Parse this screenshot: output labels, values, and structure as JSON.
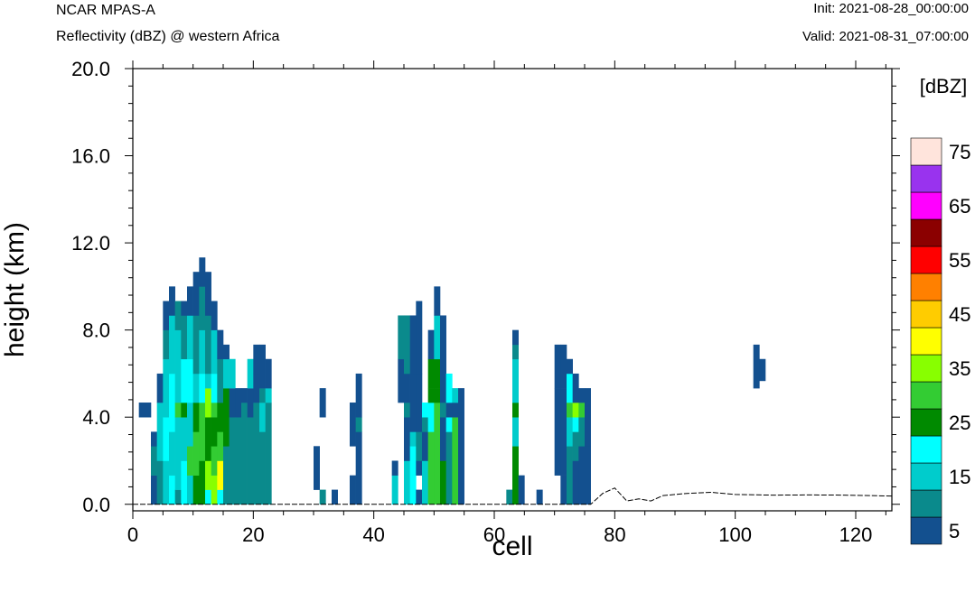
{
  "header": {
    "left_top": "NCAR MPAS-A",
    "left_sub": "Reflectivity (dBZ) @ western Africa",
    "right_top": "Init: 2021-08-28_00:00:00",
    "right_sub": "Valid: 2021-08-31_07:00:00"
  },
  "chart_data": {
    "type": "heatmap",
    "xlabel": "cell",
    "ylabel": "height (km)",
    "xlim": [
      0,
      126
    ],
    "ylim": [
      -0.3,
      20.0
    ],
    "x_ticks": [
      "0",
      "20",
      "40",
      "60",
      "80",
      "100",
      "120"
    ],
    "y_ticks": [
      "0.0",
      "4.0",
      "8.0",
      "12.0",
      "16.0",
      "20.0"
    ],
    "colorbar": {
      "label": "[dBZ]",
      "tick_labels": [
        "5",
        "15",
        "25",
        "35",
        "45",
        "55",
        "65",
        "75"
      ],
      "levels": [
        5,
        10,
        15,
        20,
        25,
        30,
        35,
        40,
        45,
        50,
        55,
        60,
        65,
        70,
        75
      ],
      "colors": [
        "#13508f",
        "#0a8a8c",
        "#00cccc",
        "#00ffff",
        "#008a00",
        "#33cc33",
        "#88ff00",
        "#ffff00",
        "#ffcc00",
        "#ff8000",
        "#ff0000",
        "#8b0000",
        "#ff00ff",
        "#9933ee",
        "#ffe4dc"
      ]
    },
    "cell_height_km": 0.67,
    "columns": [
      {
        "x": 1,
        "bins": [
          [
            4.0,
            4.67,
            5
          ]
        ]
      },
      {
        "x": 2,
        "bins": [
          [
            4.0,
            4.67,
            5
          ]
        ]
      },
      {
        "x": 3,
        "bins": [
          [
            0,
            1.33,
            5
          ],
          [
            1.33,
            2.67,
            10
          ],
          [
            2.67,
            3.33,
            5
          ]
        ]
      },
      {
        "x": 4,
        "bins": [
          [
            0,
            2.0,
            10
          ],
          [
            2.0,
            4.67,
            15
          ],
          [
            4.67,
            6.0,
            5
          ]
        ]
      },
      {
        "x": 5,
        "bins": [
          [
            0,
            2.0,
            15
          ],
          [
            2.0,
            4.0,
            20
          ],
          [
            4.0,
            6.67,
            15
          ],
          [
            6.67,
            8.0,
            10
          ],
          [
            8.0,
            9.33,
            5
          ]
        ]
      },
      {
        "x": 6,
        "bins": [
          [
            0,
            1.33,
            20
          ],
          [
            1.33,
            3.33,
            15
          ],
          [
            3.33,
            6.0,
            20
          ],
          [
            6.0,
            8.67,
            15
          ],
          [
            8.67,
            10.0,
            5
          ]
        ]
      },
      {
        "x": 7,
        "bins": [
          [
            0,
            0.67,
            10
          ],
          [
            0.67,
            4.0,
            15
          ],
          [
            4.0,
            4.67,
            30
          ],
          [
            4.67,
            8.0,
            15
          ],
          [
            8.0,
            9.33,
            10
          ]
        ]
      },
      {
        "x": 8,
        "bins": [
          [
            0,
            2.0,
            20
          ],
          [
            2.0,
            4.0,
            15
          ],
          [
            4.0,
            4.67,
            25
          ],
          [
            4.67,
            6.67,
            20
          ],
          [
            6.67,
            8.67,
            10
          ],
          [
            8.67,
            9.33,
            5
          ]
        ]
      },
      {
        "x": 9,
        "bins": [
          [
            0,
            1.33,
            15
          ],
          [
            1.33,
            2.67,
            30
          ],
          [
            2.67,
            4.67,
            15
          ],
          [
            4.67,
            6.67,
            20
          ],
          [
            6.67,
            8.67,
            15
          ],
          [
            8.67,
            10.0,
            5
          ]
        ]
      },
      {
        "x": 10,
        "bins": [
          [
            0,
            1.33,
            25
          ],
          [
            1.33,
            3.33,
            30
          ],
          [
            3.33,
            4.67,
            25
          ],
          [
            4.67,
            6.0,
            15
          ],
          [
            6.0,
            8.67,
            10
          ],
          [
            8.67,
            10.67,
            5
          ]
        ]
      },
      {
        "x": 11,
        "bins": [
          [
            0,
            2.0,
            25
          ],
          [
            2.0,
            4.67,
            30
          ],
          [
            4.67,
            6.0,
            20
          ],
          [
            6.0,
            8.0,
            15
          ],
          [
            8.0,
            10.0,
            10
          ],
          [
            10.0,
            11.33,
            5
          ]
        ]
      },
      {
        "x": 12,
        "bins": [
          [
            0,
            0.67,
            20
          ],
          [
            0.67,
            2.0,
            35
          ],
          [
            2.0,
            4.0,
            25
          ],
          [
            4.0,
            5.33,
            35
          ],
          [
            5.33,
            6.0,
            15
          ],
          [
            6.0,
            8.67,
            10
          ],
          [
            8.67,
            10.67,
            5
          ]
        ]
      },
      {
        "x": 13,
        "bins": [
          [
            0,
            1.33,
            35
          ],
          [
            1.33,
            2.67,
            30
          ],
          [
            2.67,
            4.0,
            25
          ],
          [
            4.0,
            4.67,
            30
          ],
          [
            4.67,
            6.0,
            20
          ],
          [
            6.0,
            8.0,
            15
          ],
          [
            8.0,
            9.33,
            5
          ]
        ]
      },
      {
        "x": 14,
        "bins": [
          [
            0,
            0.67,
            20
          ],
          [
            0.67,
            2.0,
            40
          ],
          [
            2.0,
            3.33,
            30
          ],
          [
            3.33,
            4.67,
            25
          ],
          [
            4.67,
            6.67,
            10
          ],
          [
            6.67,
            8.0,
            5
          ]
        ]
      },
      {
        "x": 15,
        "bins": [
          [
            0,
            2.67,
            10
          ],
          [
            2.67,
            5.33,
            25
          ],
          [
            5.33,
            6.67,
            15
          ],
          [
            6.67,
            7.33,
            5
          ]
        ]
      },
      {
        "x": 16,
        "bins": [
          [
            0,
            4.0,
            10
          ],
          [
            4.0,
            5.33,
            5
          ],
          [
            5.33,
            6.67,
            15
          ]
        ]
      },
      {
        "x": 17,
        "bins": [
          [
            0,
            4.0,
            10
          ],
          [
            4.0,
            5.33,
            5
          ]
        ]
      },
      {
        "x": 18,
        "bins": [
          [
            0,
            4.67,
            10
          ],
          [
            4.67,
            5.33,
            5
          ]
        ]
      },
      {
        "x": 19,
        "bins": [
          [
            0,
            4.0,
            10
          ],
          [
            4.0,
            5.33,
            5
          ],
          [
            5.33,
            6.67,
            15
          ]
        ]
      },
      {
        "x": 20,
        "bins": [
          [
            0,
            4.67,
            10
          ],
          [
            4.67,
            6.0,
            5
          ],
          [
            6.0,
            7.33,
            5
          ]
        ]
      },
      {
        "x": 21,
        "bins": [
          [
            0,
            3.33,
            10
          ],
          [
            3.33,
            4.67,
            15
          ],
          [
            4.67,
            5.33,
            10
          ],
          [
            5.33,
            7.33,
            5
          ]
        ]
      },
      {
        "x": 22,
        "bins": [
          [
            0,
            4.67,
            10
          ],
          [
            4.67,
            5.33,
            15
          ],
          [
            5.33,
            6.67,
            5
          ]
        ]
      },
      {
        "x": 30,
        "bins": [
          [
            0.67,
            2.67,
            5
          ]
        ]
      },
      {
        "x": 31,
        "bins": [
          [
            0,
            0.67,
            10
          ],
          [
            4.0,
            5.33,
            5
          ]
        ]
      },
      {
        "x": 33,
        "bins": [
          [
            0,
            0.67,
            5
          ]
        ]
      },
      {
        "x": 36,
        "bins": [
          [
            0,
            1.33,
            5
          ],
          [
            2.67,
            4.67,
            5
          ]
        ]
      },
      {
        "x": 37,
        "bins": [
          [
            0,
            3.33,
            5
          ],
          [
            3.33,
            4.0,
            10
          ],
          [
            4.0,
            6.0,
            5
          ]
        ]
      },
      {
        "x": 43,
        "bins": [
          [
            0,
            1.33,
            15
          ],
          [
            1.33,
            2.0,
            5
          ]
        ]
      },
      {
        "x": 44,
        "bins": [
          [
            4.67,
            6.67,
            5
          ],
          [
            6.67,
            8.67,
            10
          ]
        ]
      },
      {
        "x": 45,
        "bins": [
          [
            0,
            2.0,
            15
          ],
          [
            2.0,
            4.0,
            5
          ],
          [
            4.0,
            4.67,
            10
          ],
          [
            4.67,
            6.0,
            5
          ],
          [
            6.0,
            8.67,
            10
          ]
        ]
      },
      {
        "x": 46,
        "bins": [
          [
            0,
            2.67,
            20
          ],
          [
            2.67,
            3.33,
            15
          ],
          [
            3.33,
            6.0,
            5
          ],
          [
            6.0,
            8.67,
            5
          ]
        ]
      },
      {
        "x": 47,
        "bins": [
          [
            0,
            0.67,
            5
          ],
          [
            1.33,
            2.0,
            5
          ],
          [
            2.0,
            3.33,
            10
          ],
          [
            3.33,
            6.0,
            5
          ],
          [
            6.0,
            9.33,
            5
          ]
        ]
      },
      {
        "x": 48,
        "bins": [
          [
            0,
            2.0,
            15
          ],
          [
            2.0,
            3.33,
            5
          ],
          [
            3.33,
            4.0,
            10
          ],
          [
            4.0,
            4.67,
            20
          ]
        ]
      },
      {
        "x": 49,
        "bins": [
          [
            0,
            3.33,
            30
          ],
          [
            3.33,
            4.67,
            20
          ],
          [
            4.67,
            5.33,
            25
          ],
          [
            5.33,
            6.67,
            25
          ],
          [
            6.67,
            8.0,
            5
          ]
        ]
      },
      {
        "x": 50,
        "bins": [
          [
            0,
            3.33,
            30
          ],
          [
            3.33,
            4.67,
            30
          ],
          [
            4.67,
            5.33,
            25
          ],
          [
            5.33,
            6.67,
            25
          ],
          [
            6.67,
            8.67,
            15
          ],
          [
            8.67,
            10.0,
            5
          ]
        ]
      },
      {
        "x": 51,
        "bins": [
          [
            0,
            2.0,
            25
          ],
          [
            2.0,
            4.0,
            5
          ],
          [
            4.0,
            4.67,
            10
          ],
          [
            4.67,
            6.0,
            5
          ],
          [
            6.0,
            8.67,
            5
          ]
        ]
      },
      {
        "x": 52,
        "bins": [
          [
            0,
            3.33,
            10
          ],
          [
            3.33,
            4.0,
            20
          ],
          [
            4.0,
            4.67,
            5
          ],
          [
            4.67,
            6.0,
            20
          ]
        ]
      },
      {
        "x": 53,
        "bins": [
          [
            0,
            4.0,
            30
          ],
          [
            4.0,
            4.67,
            5
          ],
          [
            4.67,
            5.33,
            15
          ]
        ]
      },
      {
        "x": 54,
        "bins": [
          [
            0,
            4.67,
            5
          ],
          [
            4.67,
            5.33,
            5
          ]
        ]
      },
      {
        "x": 62,
        "bins": [
          [
            0,
            0.67,
            10
          ]
        ]
      },
      {
        "x": 63,
        "bins": [
          [
            0,
            2.67,
            25
          ],
          [
            2.67,
            4.0,
            15
          ],
          [
            4.0,
            4.67,
            25
          ],
          [
            4.67,
            6.67,
            15
          ],
          [
            6.67,
            7.33,
            10
          ],
          [
            7.33,
            8.0,
            5
          ]
        ]
      },
      {
        "x": 64,
        "bins": [
          [
            0,
            1.33,
            5
          ]
        ]
      },
      {
        "x": 67,
        "bins": [
          [
            0,
            0.67,
            5
          ]
        ]
      },
      {
        "x": 70,
        "bins": [
          [
            1.33,
            5.33,
            5
          ],
          [
            5.33,
            7.33,
            5
          ]
        ]
      },
      {
        "x": 71,
        "bins": [
          [
            0,
            1.33,
            5
          ],
          [
            1.33,
            5.33,
            5
          ],
          [
            5.33,
            7.33,
            5
          ]
        ]
      },
      {
        "x": 72,
        "bins": [
          [
            0,
            2.67,
            10
          ],
          [
            2.67,
            4.0,
            15
          ],
          [
            4.0,
            4.67,
            30
          ],
          [
            4.67,
            6.0,
            20
          ],
          [
            6.0,
            6.67,
            5
          ]
        ]
      },
      {
        "x": 73,
        "bins": [
          [
            0,
            2.0,
            5
          ],
          [
            2.0,
            3.33,
            10
          ],
          [
            3.33,
            4.0,
            20
          ],
          [
            4.0,
            4.67,
            35
          ],
          [
            4.67,
            6.0,
            5
          ]
        ]
      },
      {
        "x": 74,
        "bins": [
          [
            0,
            2.67,
            5
          ],
          [
            2.67,
            4.0,
            10
          ],
          [
            4.0,
            4.67,
            30
          ],
          [
            4.67,
            5.33,
            5
          ]
        ]
      },
      {
        "x": 75,
        "bins": [
          [
            0,
            2.67,
            5
          ],
          [
            2.67,
            4.67,
            5
          ],
          [
            4.67,
            5.33,
            5
          ]
        ]
      },
      {
        "x": 103,
        "bins": [
          [
            5.33,
            7.33,
            5
          ]
        ]
      },
      {
        "x": 104,
        "bins": [
          [
            5.67,
            6.67,
            5
          ]
        ]
      }
    ],
    "terrain": {
      "x": [
        0,
        60,
        76,
        78,
        80,
        82,
        84,
        86,
        88,
        92,
        96,
        100,
        106,
        112,
        118,
        126
      ],
      "y": [
        0,
        0,
        0,
        0.5,
        0.75,
        0.15,
        0.25,
        0.15,
        0.4,
        0.5,
        0.55,
        0.45,
        0.42,
        0.43,
        0.42,
        0.38
      ]
    }
  }
}
